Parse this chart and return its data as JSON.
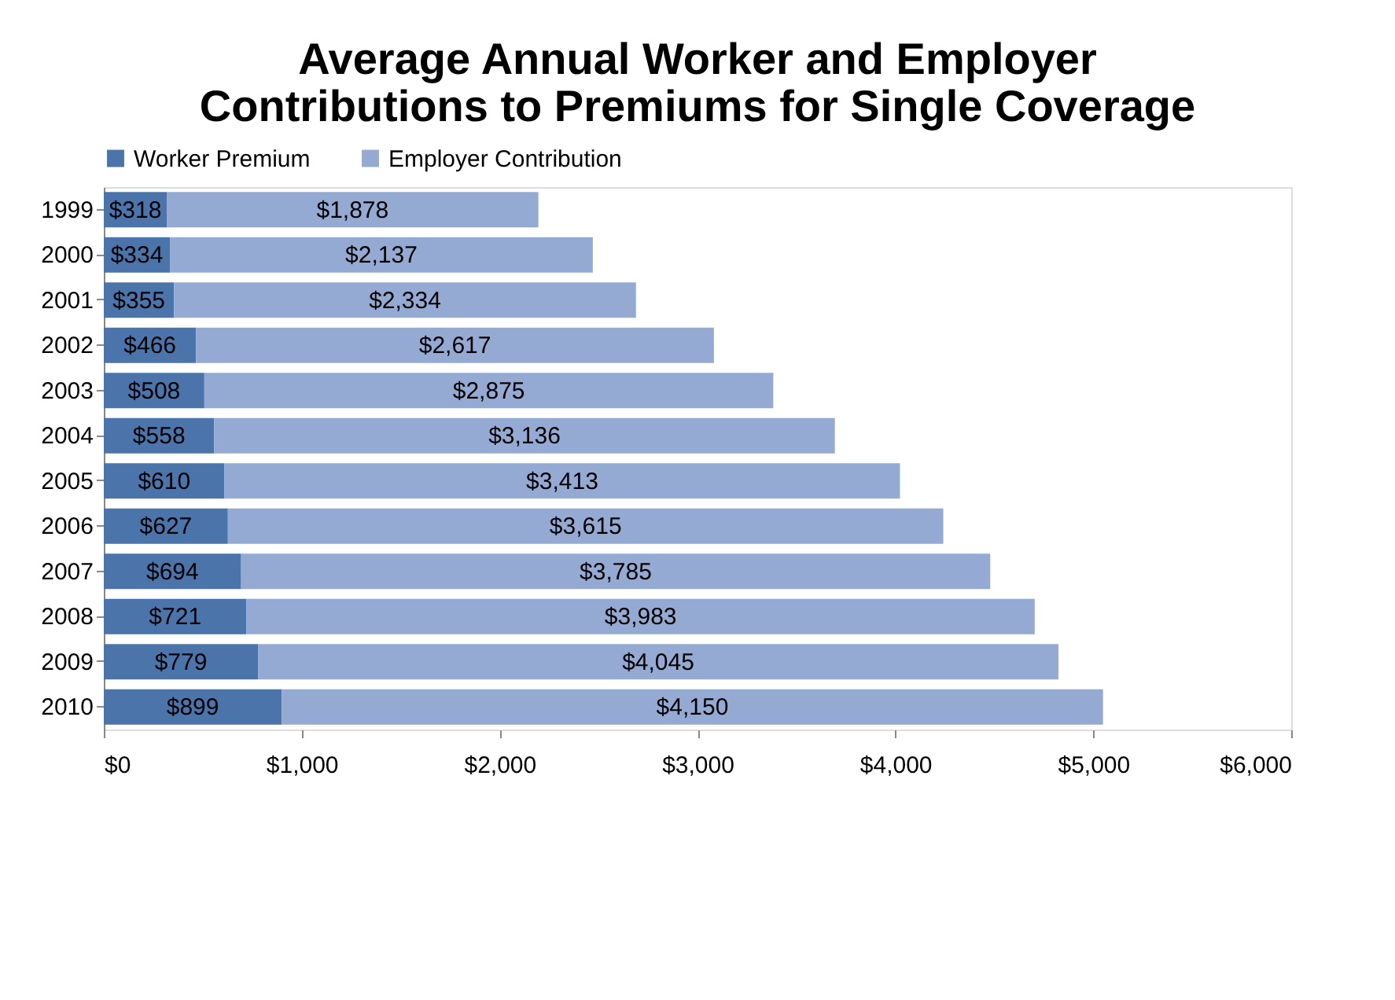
{
  "chart_data": {
    "type": "bar",
    "orientation": "horizontal",
    "stacked": true,
    "title": "Average Annual Worker and Employer Contributions to Premiums for Single Coverage",
    "categories": [
      "1999",
      "2000",
      "2001",
      "2002",
      "2003",
      "2004",
      "2005",
      "2006",
      "2007",
      "2008",
      "2009",
      "2010"
    ],
    "series": [
      {
        "name": "Worker Premium",
        "color": "#4a74aa",
        "values": [
          318,
          334,
          355,
          466,
          508,
          558,
          610,
          627,
          694,
          721,
          779,
          899
        ],
        "value_labels": [
          "$318",
          "$334",
          "$355",
          "$466",
          "$508",
          "$558",
          "$610",
          "$627",
          "$694",
          "$721",
          "$779",
          "$899"
        ]
      },
      {
        "name": "Employer Contribution",
        "color": "#95aad3",
        "values": [
          1878,
          2137,
          2334,
          2617,
          2875,
          3136,
          3413,
          3615,
          3785,
          3983,
          4045,
          4150
        ],
        "value_labels": [
          "$1,878",
          "$2,137",
          "$2,334",
          "$2,617",
          "$2,875",
          "$3,136",
          "$3,413",
          "$3,615",
          "$3,785",
          "$3,983",
          "$4,045",
          "$4,150"
        ]
      }
    ],
    "xlim": [
      0,
      6000
    ],
    "xticks": [
      {
        "value": 0,
        "label": "$0"
      },
      {
        "value": 1000,
        "label": "$1,000"
      },
      {
        "value": 2000,
        "label": "$2,000"
      },
      {
        "value": 3000,
        "label": "$3,000"
      },
      {
        "value": 4000,
        "label": "$4,000"
      },
      {
        "value": 5000,
        "label": "$5,000"
      },
      {
        "value": 6000,
        "label": "$6,000"
      }
    ],
    "legend": "top",
    "grid": false
  }
}
